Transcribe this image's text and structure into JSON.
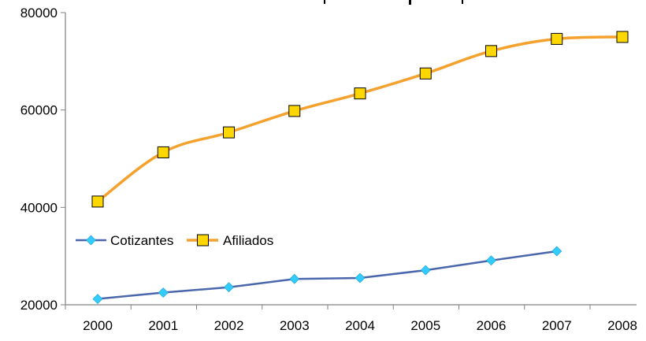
{
  "chart_data": {
    "type": "line",
    "x": [
      "2000",
      "2001",
      "2002",
      "2003",
      "2004",
      "2005",
      "2006",
      "2007",
      "2008"
    ],
    "ylim": [
      20000,
      80000
    ],
    "yticks": [
      "20000",
      "40000",
      "60000",
      "80000"
    ],
    "grid": false,
    "legend": "inside-left",
    "series": [
      {
        "name": "Cotizantes",
        "color": "#4a66ac",
        "marker": "diamond",
        "marker_color": "#33ccff",
        "values": [
          21200,
          22500,
          23600,
          25300,
          25500,
          27100,
          29100,
          31000,
          null
        ]
      },
      {
        "name": "Afiliados",
        "color": "#f4a12d",
        "marker": "square",
        "marker_color": "#ffd700",
        "values": [
          41200,
          51300,
          55400,
          59800,
          63400,
          67500,
          72100,
          74600,
          75000
        ]
      }
    ]
  }
}
